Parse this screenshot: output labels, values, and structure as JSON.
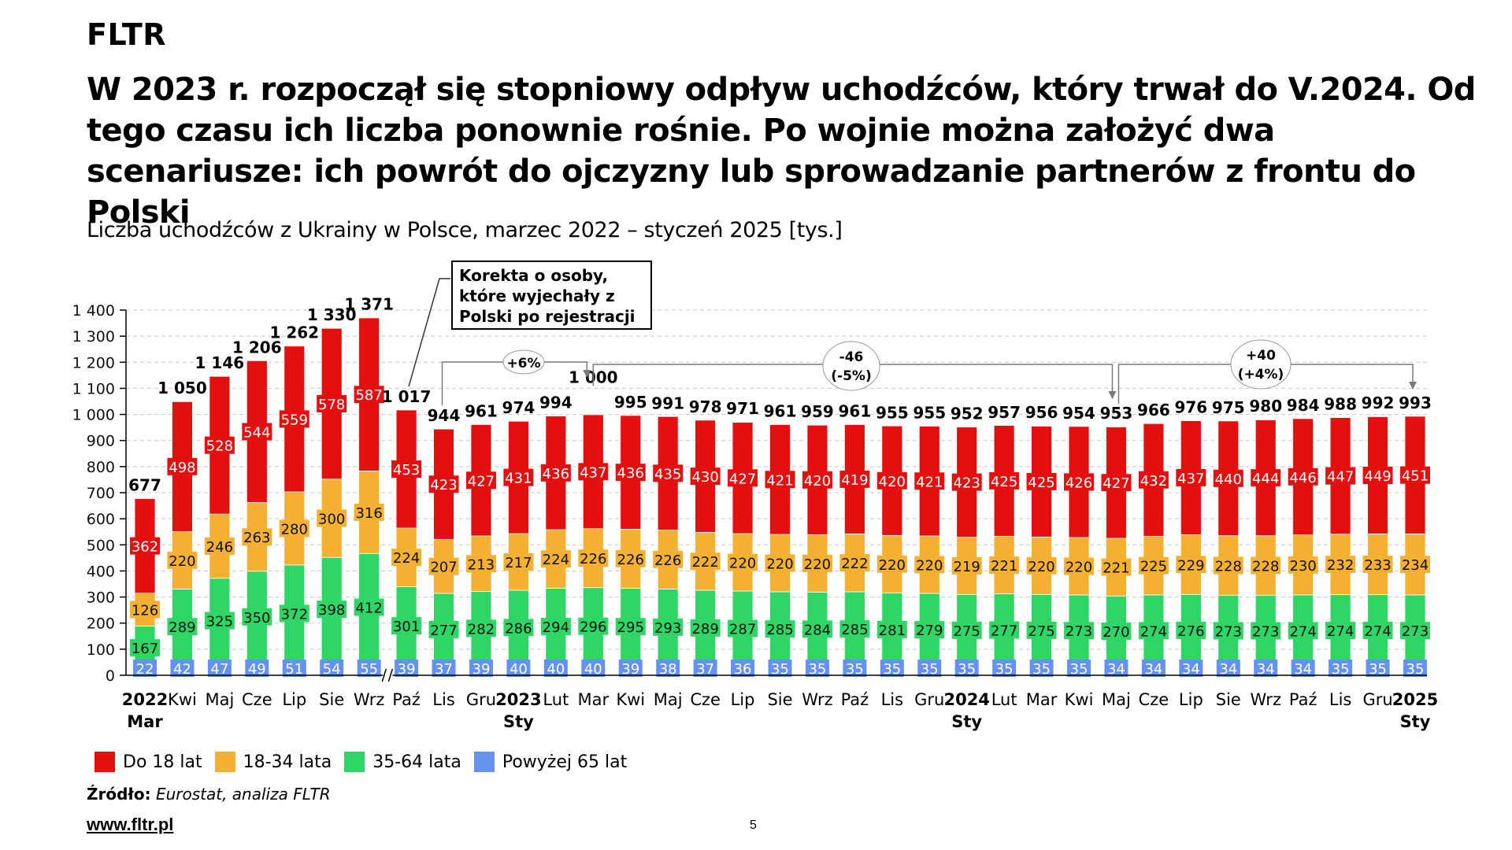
{
  "brand": "FLTR",
  "headline": "W 2023 r. rozpoczął się stopniowy odpływ uchodźców, który trwał do V.2024. Od tego czasu ich liczba ponownie rośnie. Po wojnie można założyć dwa scenariusze: ich powrót do ojczyzny lub sprowadzanie partnerów z frontu do Polski",
  "subtitle": "Liczba uchodźców z Ukrainy w Polsce, marzec 2022 – styczeń 2025 [tys.]",
  "note_box": "Korekta o osoby, które wyjechały z Polski po rejestracji",
  "source_label": "Źródło:",
  "source_text": "Eurostat, analiza FLTR",
  "website": "www.fltr.pl",
  "page_number": "5",
  "colors": {
    "under18": "#e41010",
    "age18_34": "#f4b030",
    "age35_64": "#2fd666",
    "over65": "#6492ee"
  },
  "chart_data": {
    "type": "bar",
    "stacked": true,
    "title": "Liczba uchodźców z Ukrainy w Polsce, marzec 2022 – styczeń 2025 [tys.]",
    "xlabel": "",
    "ylabel": "",
    "ylim": [
      0,
      1400
    ],
    "yticks": [
      0,
      100,
      200,
      300,
      400,
      500,
      600,
      700,
      800,
      900,
      1000,
      1100,
      1200,
      1300,
      1400
    ],
    "ytick_labels": [
      "0",
      "100",
      "200",
      "300",
      "400",
      "500",
      "600",
      "700",
      "800",
      "900",
      "1 000",
      "1 100",
      "1 200",
      "1 300",
      "1 400"
    ],
    "grid": true,
    "legend_position": "bottom-left",
    "axis_break_after": "Wrz",
    "categories": [
      {
        "month": "Mar",
        "year": "2022"
      },
      {
        "month": "Kwi"
      },
      {
        "month": "Maj"
      },
      {
        "month": "Cze"
      },
      {
        "month": "Lip"
      },
      {
        "month": "Sie"
      },
      {
        "month": "Wrz"
      },
      {
        "month": "Paź"
      },
      {
        "month": "Lis"
      },
      {
        "month": "Gru"
      },
      {
        "month": "Sty",
        "year": "2023"
      },
      {
        "month": "Lut"
      },
      {
        "month": "Mar"
      },
      {
        "month": "Kwi"
      },
      {
        "month": "Maj"
      },
      {
        "month": "Cze"
      },
      {
        "month": "Lip"
      },
      {
        "month": "Sie"
      },
      {
        "month": "Wrz"
      },
      {
        "month": "Paź"
      },
      {
        "month": "Lis"
      },
      {
        "month": "Gru"
      },
      {
        "month": "Sty",
        "year": "2024"
      },
      {
        "month": "Lut"
      },
      {
        "month": "Mar"
      },
      {
        "month": "Kwi"
      },
      {
        "month": "Maj"
      },
      {
        "month": "Cze"
      },
      {
        "month": "Lip"
      },
      {
        "month": "Sie"
      },
      {
        "month": "Wrz"
      },
      {
        "month": "Paź"
      },
      {
        "month": "Lis"
      },
      {
        "month": "Gru"
      },
      {
        "month": "Sty",
        "year": "2025"
      }
    ],
    "series": [
      {
        "name": "Powyżej 65 lat",
        "color": "#6492ee",
        "label_color": "#ffffff",
        "values": [
          22,
          42,
          47,
          49,
          51,
          54,
          55,
          39,
          37,
          39,
          40,
          40,
          40,
          39,
          38,
          37,
          36,
          35,
          35,
          35,
          35,
          35,
          35,
          35,
          35,
          35,
          34,
          34,
          34,
          34,
          34,
          34,
          35,
          35,
          35
        ]
      },
      {
        "name": "35-64 lata",
        "color": "#2fd666",
        "label_color": "#111111",
        "values": [
          167,
          289,
          325,
          350,
          372,
          398,
          412,
          301,
          277,
          282,
          286,
          294,
          296,
          295,
          293,
          289,
          287,
          285,
          284,
          285,
          281,
          279,
          275,
          277,
          275,
          273,
          270,
          274,
          276,
          273,
          273,
          274,
          274,
          274,
          273
        ]
      },
      {
        "name": "18-34 lata",
        "color": "#f4b030",
        "label_color": "#111111",
        "values": [
          126,
          220,
          246,
          263,
          280,
          300,
          316,
          224,
          207,
          213,
          217,
          224,
          226,
          226,
          226,
          222,
          220,
          220,
          220,
          222,
          220,
          220,
          219,
          221,
          220,
          220,
          221,
          225,
          229,
          228,
          228,
          230,
          232,
          233,
          234
        ]
      },
      {
        "name": "Do 18 lat",
        "color": "#e41010",
        "label_color": "#ffffff",
        "values": [
          362,
          498,
          528,
          544,
          559,
          578,
          587,
          453,
          423,
          427,
          431,
          436,
          437,
          436,
          435,
          430,
          427,
          421,
          420,
          419,
          420,
          421,
          423,
          425,
          425,
          426,
          427,
          432,
          437,
          440,
          444,
          446,
          447,
          449,
          451
        ]
      }
    ],
    "totals": [
      677,
      1050,
      1146,
      1206,
      1262,
      1330,
      1371,
      1017,
      944,
      961,
      974,
      994,
      1000,
      995,
      991,
      978,
      971,
      961,
      959,
      961,
      955,
      955,
      952,
      957,
      956,
      954,
      953,
      966,
      976,
      975,
      980,
      984,
      988,
      992,
      993
    ],
    "total_labels": [
      "677",
      "1 050",
      "1 146",
      "1 206",
      "1 262",
      "1 330",
      "1 371",
      "1 017",
      "944",
      "961",
      "974",
      "994",
      "1 000",
      "995",
      "991",
      "978",
      "971",
      "961",
      "959",
      "961",
      "955",
      "955",
      "952",
      "957",
      "956",
      "954",
      "953",
      "966",
      "976",
      "975",
      "980",
      "984",
      "988",
      "992",
      "993"
    ],
    "legend_order": [
      "Do 18 lat",
      "18-34 lata",
      "35-64 lata",
      "Powyżej 65 lat"
    ],
    "annotations": [
      {
        "text": "+6%",
        "from_index": 8,
        "to_index": 12
      },
      {
        "text_lines": [
          "-46",
          "(-5%)"
        ],
        "from_index": 12,
        "to_index": 26
      },
      {
        "text_lines": [
          "+40",
          "(+4%)"
        ],
        "from_index": 26,
        "to_index": 34
      }
    ]
  }
}
